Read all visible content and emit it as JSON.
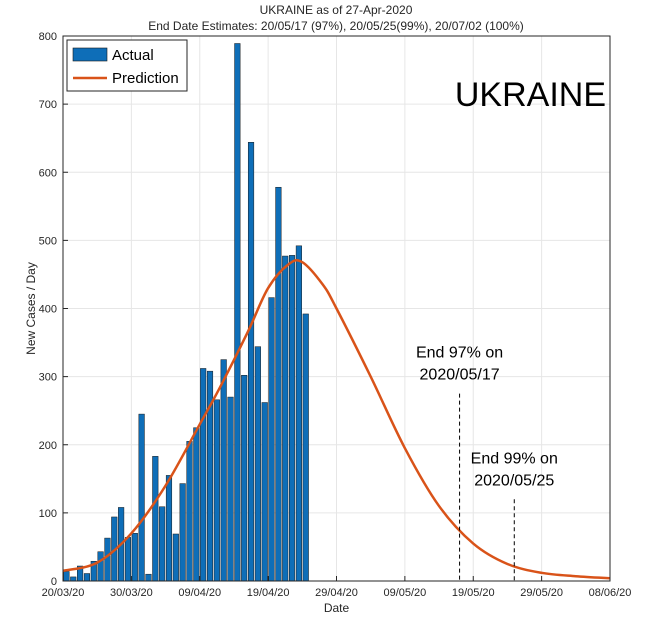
{
  "chart_data": {
    "type": "bar",
    "title": "UKRAINE as of 27-Apr-2020",
    "subtitle": "End Date Estimates: 20/05/17 (97%), 20/05/25(99%), 20/07/02 (100%)",
    "xlabel": "Date",
    "ylabel": "New Cases / Day",
    "country_label": "UKRAINE",
    "ylim": [
      0,
      800
    ],
    "yticks": [
      0,
      100,
      200,
      300,
      400,
      500,
      600,
      700,
      800
    ],
    "xlim": [
      "2020-03-20",
      "2020-06-08"
    ],
    "xticks": [
      "2020-03-20",
      "2020-03-30",
      "2020-04-09",
      "2020-04-19",
      "2020-04-29",
      "2020-05-09",
      "2020-05-19",
      "2020-05-29",
      "2020-06-08"
    ],
    "xtick_labels": [
      "20/03/20",
      "30/03/20",
      "09/04/20",
      "19/04/20",
      "29/04/20",
      "09/05/20",
      "19/05/20",
      "29/05/20",
      "08/06/20"
    ],
    "grid": true,
    "legend_position": "top-left",
    "series": [
      {
        "name": "Actual",
        "type": "bar",
        "color": "#0E6EB8",
        "x": [
          "2020-03-20",
          "2020-03-21",
          "2020-03-22",
          "2020-03-23",
          "2020-03-24",
          "2020-03-25",
          "2020-03-26",
          "2020-03-27",
          "2020-03-28",
          "2020-03-29",
          "2020-03-30",
          "2020-03-31",
          "2020-04-01",
          "2020-04-02",
          "2020-04-03",
          "2020-04-04",
          "2020-04-05",
          "2020-04-06",
          "2020-04-07",
          "2020-04-08",
          "2020-04-09",
          "2020-04-10",
          "2020-04-11",
          "2020-04-12",
          "2020-04-13",
          "2020-04-14",
          "2020-04-15",
          "2020-04-16",
          "2020-04-17",
          "2020-04-18",
          "2020-04-19",
          "2020-04-20",
          "2020-04-21",
          "2020-04-22",
          "2020-04-23",
          "2020-04-24",
          "2020-04-25",
          "2020-04-26",
          "2020-04-27"
        ],
        "values": [
          14,
          6,
          22,
          11,
          29,
          43,
          63,
          94,
          108,
          64,
          70,
          245,
          10,
          183,
          109,
          155,
          69,
          143,
          205,
          225,
          312,
          308,
          266,
          325,
          270,
          789,
          302,
          644,
          344,
          262,
          416,
          578,
          477,
          478,
          492,
          392,
          0,
          0,
          0
        ]
      },
      {
        "name": "Prediction",
        "type": "line",
        "color": "#D95319",
        "x": [
          "2020-03-20",
          "2020-03-25",
          "2020-03-30",
          "2020-04-04",
          "2020-04-09",
          "2020-04-12",
          "2020-04-16",
          "2020-04-19",
          "2020-04-22",
          "2020-04-24",
          "2020-04-27",
          "2020-04-29",
          "2020-05-04",
          "2020-05-09",
          "2020-05-14",
          "2020-05-19",
          "2020-05-24",
          "2020-05-29",
          "2020-06-03",
          "2020-06-08"
        ],
        "values": [
          15,
          27,
          70,
          140,
          230,
          285,
          365,
          430,
          465,
          468,
          435,
          400,
          300,
          195,
          110,
          55,
          25,
          12,
          7,
          4
        ]
      }
    ],
    "annotations": [
      {
        "date": "2020-05-17",
        "lines": [
          "End 97% on",
          "2020/05/17"
        ],
        "line_top": 275
      },
      {
        "date": "2020-05-25",
        "lines": [
          "End 99% on",
          "2020/05/25"
        ],
        "line_top": 120
      }
    ]
  }
}
